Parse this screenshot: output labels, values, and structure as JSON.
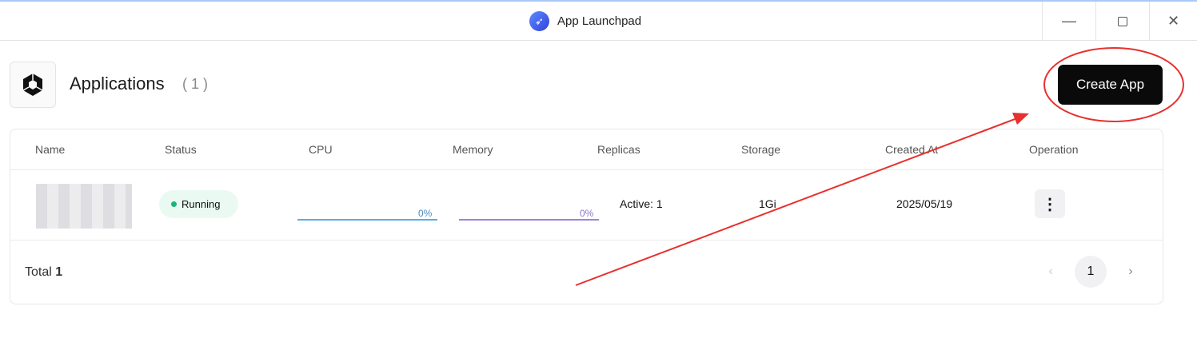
{
  "window": {
    "title": "App Launchpad",
    "app_icon": "rocket-icon",
    "controls": [
      "minimize-icon",
      "restore-icon",
      "close-icon"
    ]
  },
  "header": {
    "icon": "cube-icon",
    "title": "Applications",
    "count": "( 1 )",
    "create_label": "Create App"
  },
  "table": {
    "columns": [
      "Name",
      "Status",
      "CPU",
      "Memory",
      "Replicas",
      "Storage",
      "Created At",
      "Operation"
    ],
    "rows": [
      {
        "name": "",
        "status": "Running",
        "cpu": "0%",
        "cpu_value": 0,
        "memory": "0%",
        "memory_value": 0,
        "replicas": "Active: 1",
        "storage": "1Gi",
        "created": "2025/05/19"
      }
    ]
  },
  "footer": {
    "total_label": "Total",
    "total": "1",
    "page": "1"
  },
  "colors": {
    "cpu": "#5aaee3",
    "memory": "#9b86d6",
    "status": "#1db47a",
    "annotation": "#e8302e"
  }
}
